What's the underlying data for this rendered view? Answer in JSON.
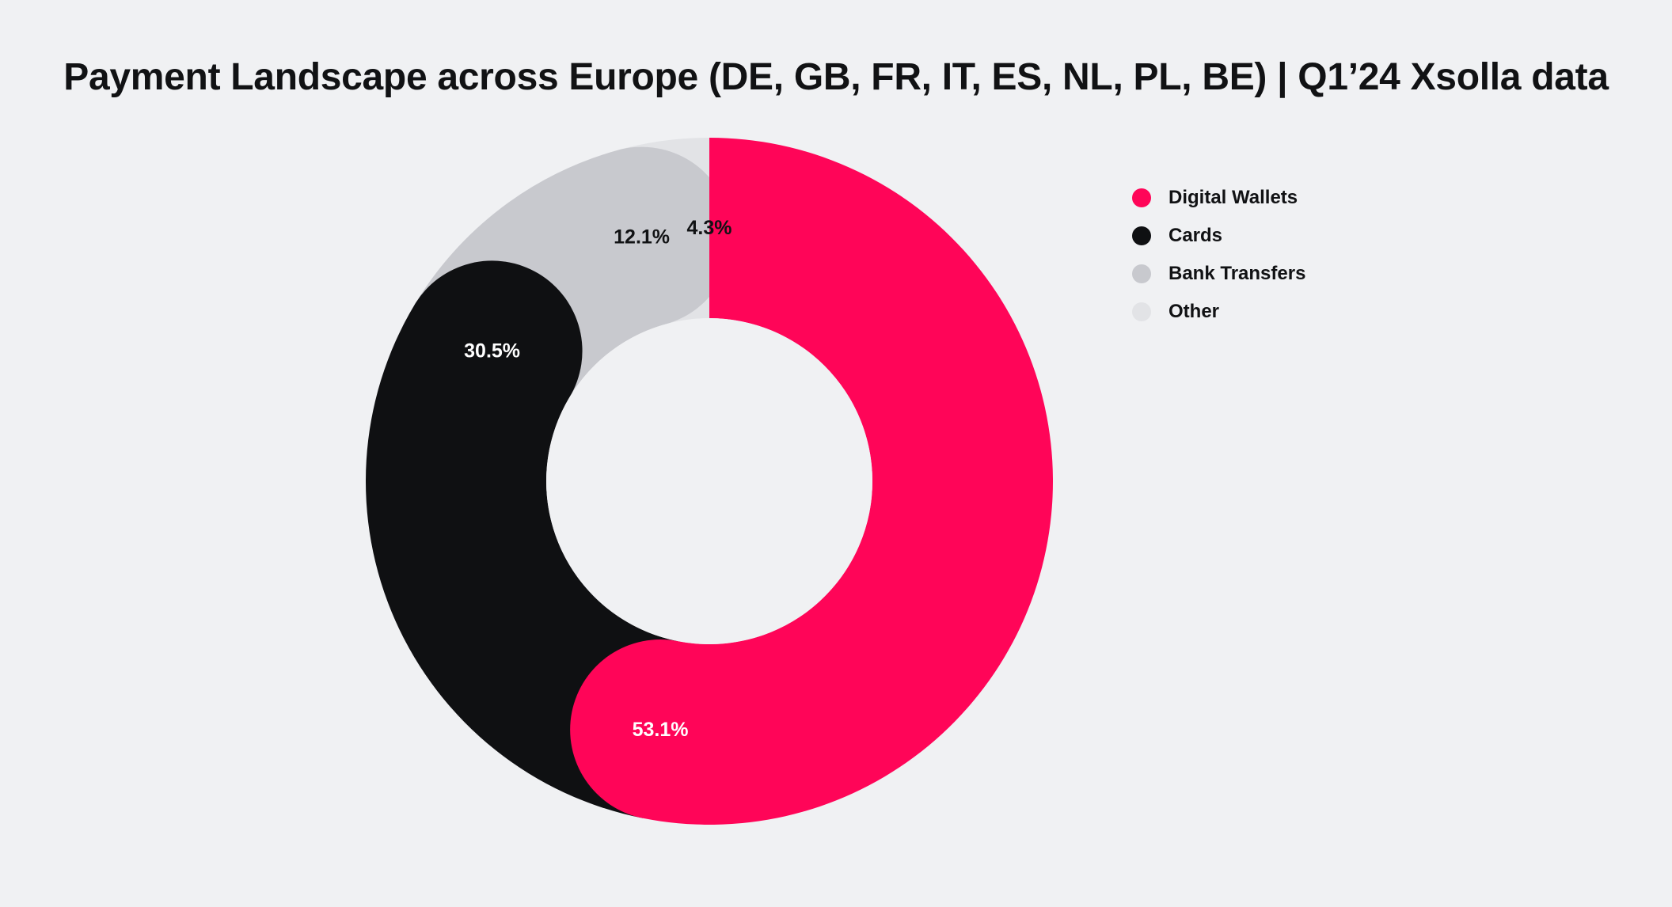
{
  "chart_data": {
    "type": "pie",
    "title": "Payment Landscape across Europe (DE, GB, FR, IT, ES, NL, PL, BE) | Q1’24 Xsolla data",
    "donut": true,
    "unit": "%",
    "slices": [
      {
        "label": "Digital Wallets",
        "value": 53.1,
        "display": "53.1%",
        "color": "#ff0558",
        "label_color": "#ffffff"
      },
      {
        "label": "Cards",
        "value": 30.5,
        "display": "30.5%",
        "color": "#0f1012",
        "label_color": "#ffffff"
      },
      {
        "label": "Bank Transfers",
        "value": 12.1,
        "display": "12.1%",
        "color": "#c8c9ce",
        "label_color": "#111214"
      },
      {
        "label": "Other",
        "value": 4.3,
        "display": "4.3%",
        "color": "#e2e3e6",
        "label_color": "#111214"
      }
    ],
    "legend": {
      "position": "top-right",
      "items": [
        "Digital Wallets",
        "Cards",
        "Bank Transfers",
        "Other"
      ]
    },
    "start_direction": "top",
    "rotation": "clockwise",
    "rounded_segment_ends": true
  },
  "colors": {
    "background": "#f0f1f3",
    "text": "#111214"
  }
}
